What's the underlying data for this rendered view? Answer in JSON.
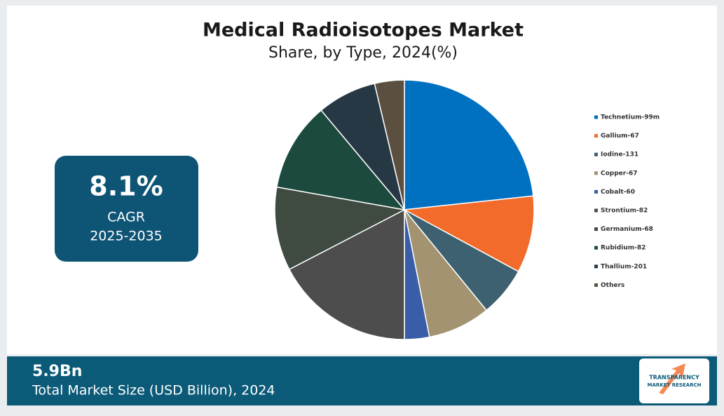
{
  "chart_data": {
    "type": "pie",
    "title": "Medical Radioisotopes Market",
    "subtitle": "Share, by Type, 2024(%)",
    "categories": [
      "Technetium-99m",
      "Gallium-67",
      "Iodine-131",
      "Copper-67",
      "Cobalt-60",
      "Strontium-82",
      "Germanium-68",
      "Rubidium-82",
      "Thallium-201",
      "Others"
    ],
    "values": [
      23.3,
      9.6,
      6.2,
      7.8,
      3.1,
      17.4,
      10.4,
      11.1,
      7.4,
      3.7
    ],
    "colors": [
      "#0070c0",
      "#f26b2a",
      "#3d6170",
      "#a39370",
      "#3a5da8",
      "#4d4d4d",
      "#3f4a40",
      "#1c4a3e",
      "#273845",
      "#5b5040"
    ],
    "legend": "right"
  },
  "cagr": {
    "value": "8.1%",
    "label": "CAGR",
    "period": "2025-2035"
  },
  "market_size": {
    "value": "5.9Bn",
    "label": "Total Market Size (USD Billion), 2024"
  },
  "logo": {
    "line1": "TRANSPARENCY",
    "line2": "MARKET RESEARCH"
  }
}
